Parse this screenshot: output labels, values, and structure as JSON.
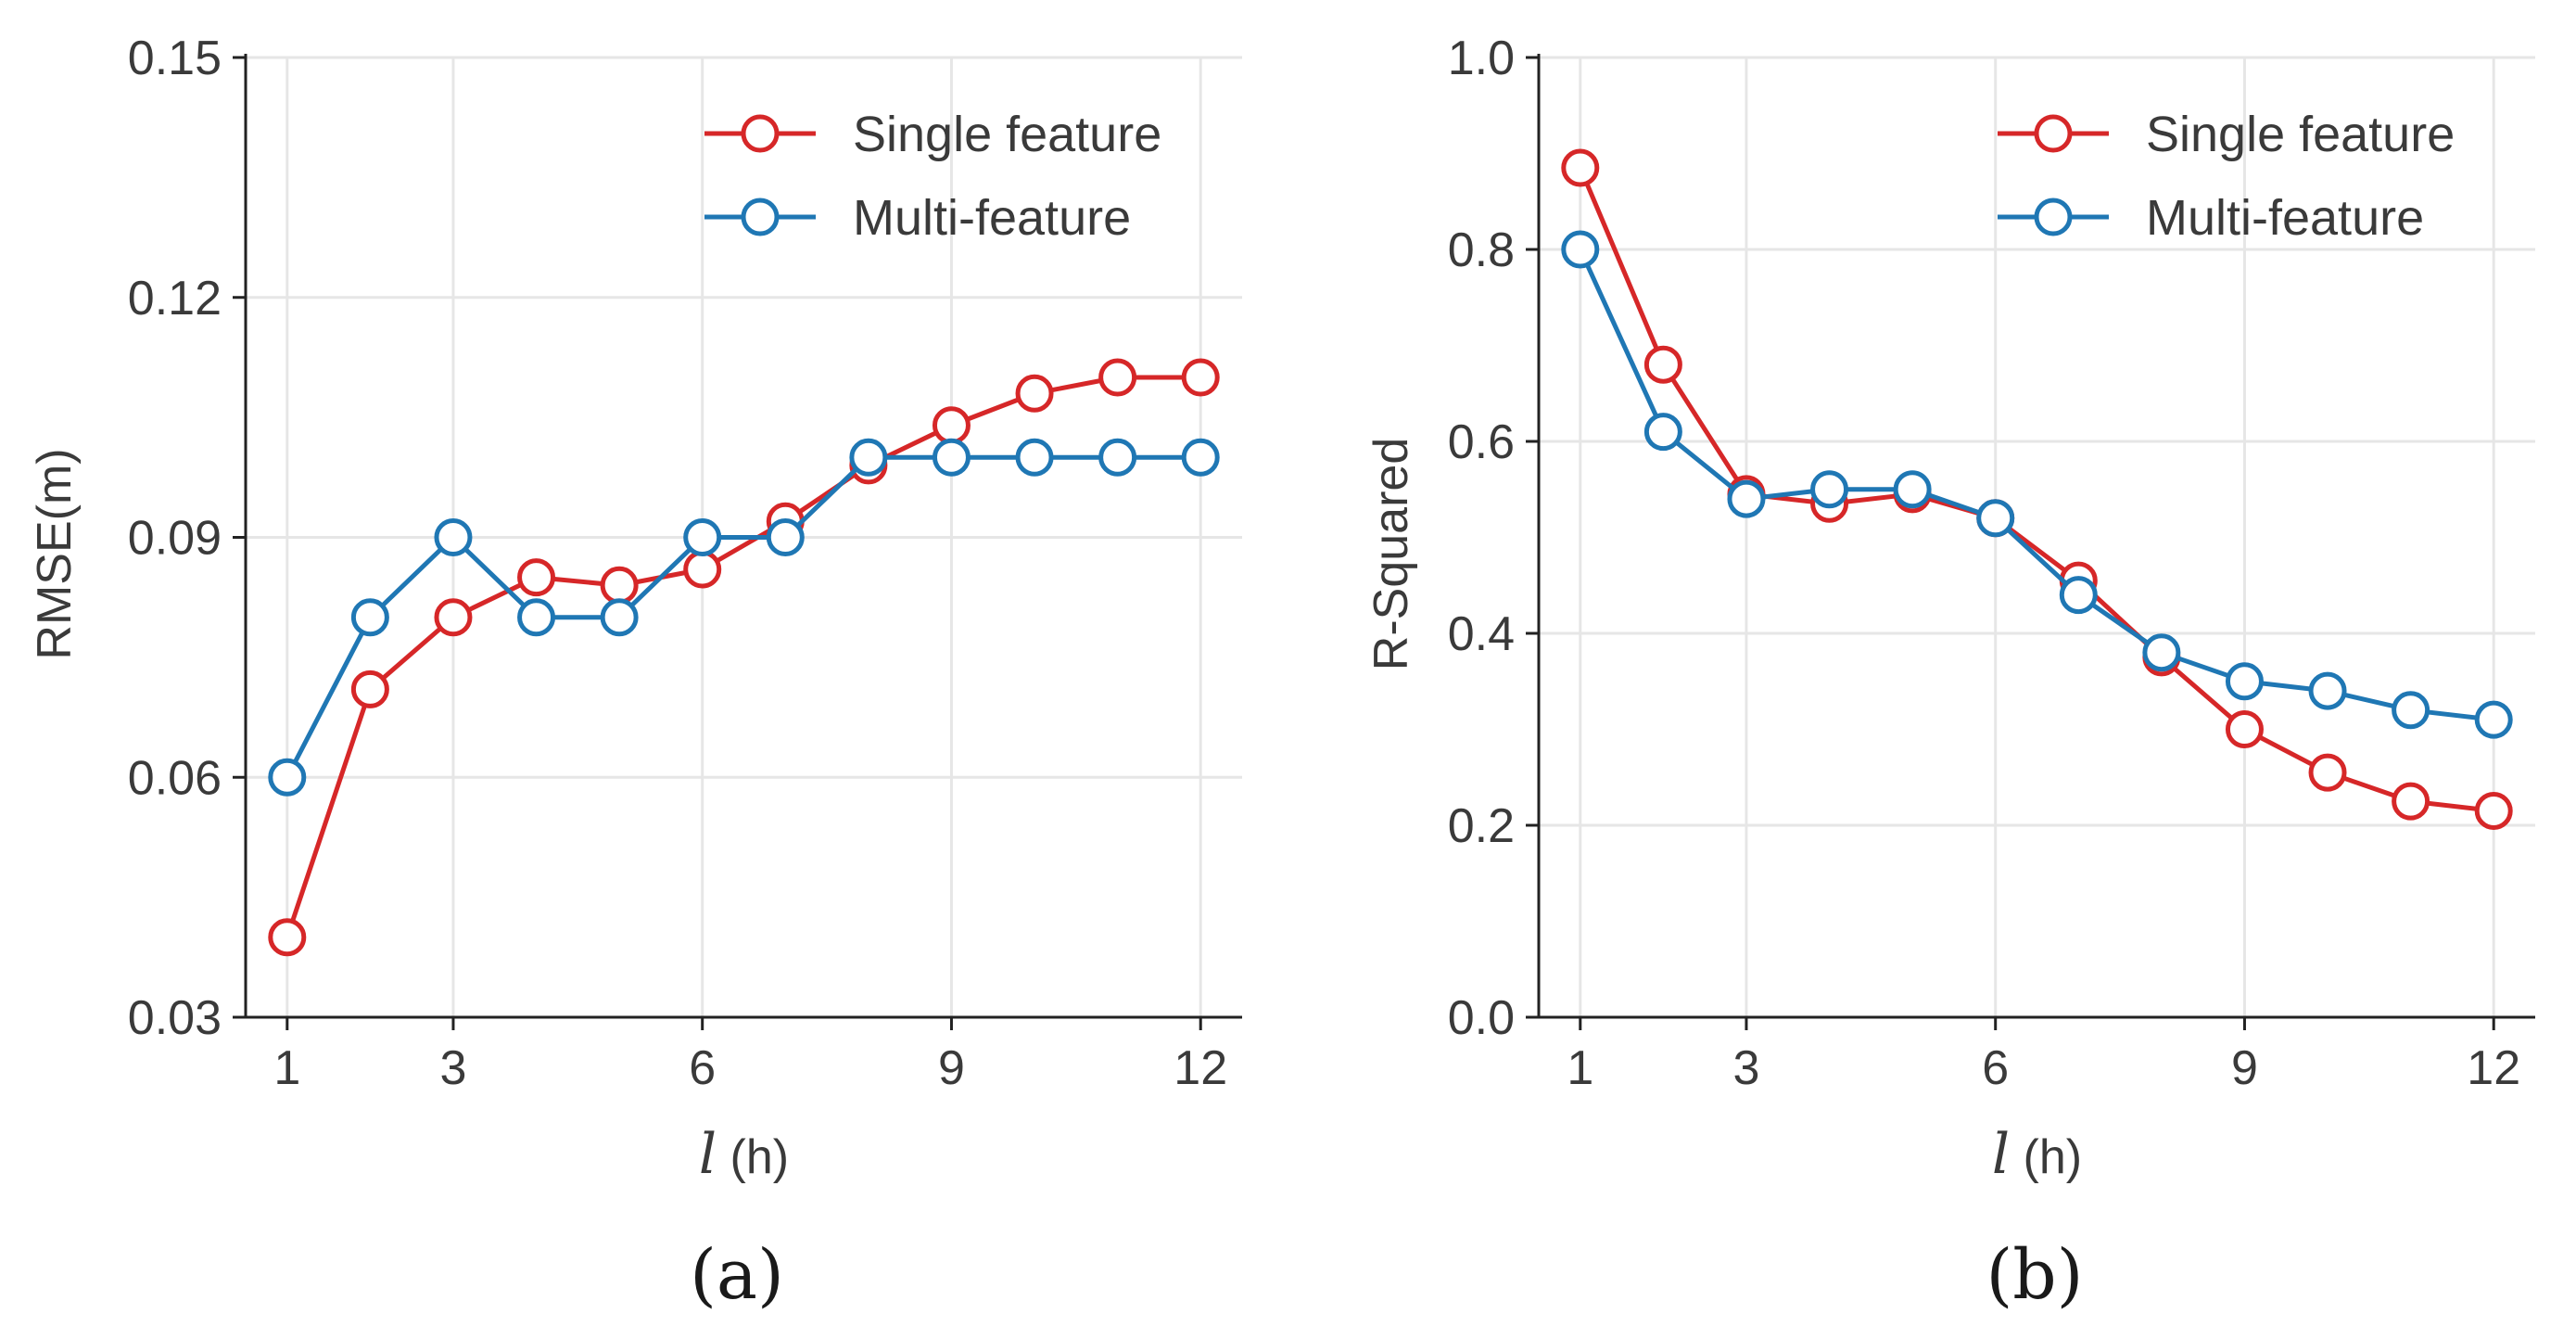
{
  "chart_data": [
    {
      "type": "line",
      "panel_label": "(a)",
      "xlabel_var": "l",
      "xlabel_unit": "(h)",
      "ylabel": "RMSE(m)",
      "xlim": [
        0.5,
        12.5
      ],
      "ylim": [
        0.03,
        0.15
      ],
      "xticks": [
        1,
        3,
        6,
        9,
        12
      ],
      "yticks": [
        0.03,
        0.06,
        0.09,
        0.12,
        0.15
      ],
      "ytick_labels": [
        "0.03",
        "0.06",
        "0.09",
        "0.12",
        "0.15"
      ],
      "grid": true,
      "legend_position": "top-right",
      "x": [
        1,
        2,
        3,
        4,
        5,
        6,
        7,
        8,
        9,
        10,
        11,
        12
      ],
      "series": [
        {
          "name": "Single feature",
          "color": "#d62728",
          "values": [
            0.04,
            0.071,
            0.08,
            0.085,
            0.084,
            0.086,
            0.092,
            0.099,
            0.104,
            0.108,
            0.11,
            0.11
          ]
        },
        {
          "name": "Multi-feature",
          "color": "#1f77b4",
          "values": [
            0.06,
            0.08,
            0.09,
            0.08,
            0.08,
            0.09,
            0.09,
            0.1,
            0.1,
            0.1,
            0.1,
            0.1
          ]
        }
      ]
    },
    {
      "type": "line",
      "panel_label": "(b)",
      "xlabel_var": "l",
      "xlabel_unit": "(h)",
      "ylabel": "R-Squared",
      "xlim": [
        0.5,
        12.5
      ],
      "ylim": [
        0.0,
        1.0
      ],
      "xticks": [
        1,
        3,
        6,
        9,
        12
      ],
      "yticks": [
        0.0,
        0.2,
        0.4,
        0.6,
        0.8,
        1.0
      ],
      "ytick_labels": [
        "0.0",
        "0.2",
        "0.4",
        "0.6",
        "0.8",
        "1.0"
      ],
      "grid": true,
      "legend_position": "top-right",
      "x": [
        1,
        2,
        3,
        4,
        5,
        6,
        7,
        8,
        9,
        10,
        11,
        12
      ],
      "series": [
        {
          "name": "Single feature",
          "color": "#d62728",
          "values": [
            0.885,
            0.68,
            0.545,
            0.535,
            0.545,
            0.52,
            0.455,
            0.375,
            0.3,
            0.255,
            0.225,
            0.215
          ]
        },
        {
          "name": "Multi-feature",
          "color": "#1f77b4",
          "values": [
            0.8,
            0.61,
            0.54,
            0.55,
            0.55,
            0.52,
            0.44,
            0.38,
            0.35,
            0.34,
            0.32,
            0.31
          ]
        }
      ]
    }
  ]
}
